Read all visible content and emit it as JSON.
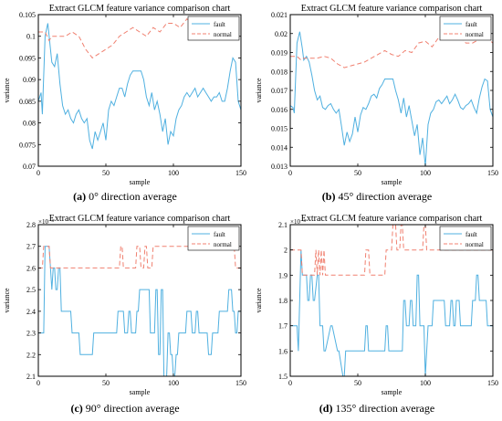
{
  "chart_data": [
    {
      "id": "a",
      "type": "line",
      "title": "Extract GLCM feature variance comparison chart",
      "xlabel": "sample",
      "ylabel": "variance",
      "xlim": [
        0,
        150
      ],
      "ylim": [
        0.07,
        0.105
      ],
      "xticks": [
        0,
        50,
        100,
        150
      ],
      "yticks": [
        0.07,
        0.075,
        0.08,
        0.085,
        0.09,
        0.095,
        0.1,
        0.105
      ],
      "ytick_labels": [
        "0.07",
        "0.075",
        "0.08",
        "0.085",
        "0.09",
        "0.095",
        "0.1",
        "0.105"
      ],
      "exponent_label": "",
      "legend_position": "top-right",
      "series": [
        {
          "name": "fault",
          "color": "#4fb0e0",
          "style": "solid",
          "x": [
            0,
            2,
            3,
            5,
            7,
            9,
            10,
            12,
            14,
            16,
            18,
            20,
            22,
            24,
            26,
            28,
            30,
            32,
            34,
            36,
            38,
            40,
            42,
            44,
            46,
            48,
            50,
            52,
            54,
            56,
            58,
            60,
            62,
            64,
            66,
            68,
            70,
            72,
            74,
            76,
            78,
            80,
            82,
            84,
            86,
            88,
            90,
            92,
            94,
            96,
            98,
            100,
            102,
            104,
            106,
            108,
            110,
            112,
            114,
            116,
            118,
            120,
            122,
            124,
            126,
            128,
            130,
            132,
            134,
            136,
            138,
            140,
            142,
            144,
            146,
            148,
            150
          ],
          "y": [
            0.085,
            0.087,
            0.082,
            0.1,
            0.103,
            0.097,
            0.094,
            0.093,
            0.096,
            0.089,
            0.084,
            0.082,
            0.083,
            0.081,
            0.08,
            0.082,
            0.083,
            0.081,
            0.08,
            0.081,
            0.076,
            0.074,
            0.078,
            0.076,
            0.078,
            0.08,
            0.076,
            0.083,
            0.085,
            0.084,
            0.086,
            0.088,
            0.088,
            0.086,
            0.089,
            0.091,
            0.092,
            0.092,
            0.092,
            0.092,
            0.09,
            0.086,
            0.084,
            0.087,
            0.083,
            0.085,
            0.082,
            0.078,
            0.081,
            0.075,
            0.078,
            0.077,
            0.081,
            0.083,
            0.084,
            0.086,
            0.087,
            0.086,
            0.087,
            0.088,
            0.086,
            0.087,
            0.088,
            0.087,
            0.086,
            0.085,
            0.086,
            0.086,
            0.087,
            0.085,
            0.085,
            0.088,
            0.092,
            0.095,
            0.094,
            0.085,
            0.083
          ]
        },
        {
          "name": "normal",
          "color": "#f08070",
          "style": "dashed",
          "x": [
            0,
            5,
            8,
            10,
            15,
            20,
            25,
            30,
            35,
            40,
            45,
            50,
            55,
            60,
            65,
            70,
            75,
            80,
            85,
            90,
            95,
            100,
            105,
            110,
            115,
            120,
            125,
            130,
            135,
            140,
            145,
            150
          ],
          "y": [
            0.101,
            0.101,
            0.099,
            0.1,
            0.1,
            0.1,
            0.101,
            0.1,
            0.097,
            0.095,
            0.096,
            0.097,
            0.098,
            0.1,
            0.101,
            0.102,
            0.101,
            0.1,
            0.102,
            0.101,
            0.103,
            0.103,
            0.102,
            0.104,
            0.103,
            0.103,
            0.104,
            0.102,
            0.102,
            0.103,
            0.103,
            0.102
          ]
        }
      ]
    },
    {
      "id": "b",
      "type": "line",
      "title": "Extract GLCM feature variance comparison chart",
      "xlabel": "sample",
      "ylabel": "variance",
      "xlim": [
        0,
        150
      ],
      "ylim": [
        0.013,
        0.021
      ],
      "xticks": [
        0,
        50,
        100,
        150
      ],
      "yticks": [
        0.013,
        0.014,
        0.015,
        0.016,
        0.017,
        0.018,
        0.019,
        0.02,
        0.021
      ],
      "ytick_labels": [
        "0.013",
        "0.014",
        "0.015",
        "0.016",
        "0.017",
        "0.018",
        "0.019",
        "0.02",
        "0.021"
      ],
      "exponent_label": "",
      "legend_position": "top-right",
      "series": [
        {
          "name": "fault",
          "color": "#4fb0e0",
          "style": "solid",
          "x": [
            0,
            2,
            3,
            5,
            7,
            9,
            10,
            12,
            14,
            16,
            18,
            20,
            22,
            24,
            26,
            28,
            30,
            32,
            34,
            36,
            38,
            40,
            42,
            44,
            46,
            48,
            50,
            52,
            54,
            56,
            58,
            60,
            62,
            64,
            66,
            68,
            70,
            72,
            74,
            76,
            78,
            80,
            82,
            84,
            86,
            88,
            90,
            92,
            94,
            96,
            98,
            100,
            102,
            104,
            106,
            108,
            110,
            112,
            114,
            116,
            118,
            120,
            122,
            124,
            126,
            128,
            130,
            132,
            134,
            136,
            138,
            140,
            142,
            144,
            146,
            148,
            150
          ],
          "y": [
            0.0162,
            0.0161,
            0.0158,
            0.0195,
            0.0201,
            0.0192,
            0.0186,
            0.0188,
            0.0185,
            0.0178,
            0.017,
            0.0165,
            0.0167,
            0.0161,
            0.016,
            0.0162,
            0.0163,
            0.016,
            0.0158,
            0.016,
            0.0151,
            0.0141,
            0.0148,
            0.0143,
            0.0147,
            0.0156,
            0.0148,
            0.0157,
            0.0161,
            0.016,
            0.0163,
            0.0167,
            0.0168,
            0.0166,
            0.0171,
            0.0173,
            0.0176,
            0.0176,
            0.0176,
            0.0176,
            0.017,
            0.0165,
            0.0158,
            0.0166,
            0.0156,
            0.0162,
            0.0154,
            0.0146,
            0.0152,
            0.0136,
            0.0145,
            0.013,
            0.0152,
            0.0158,
            0.016,
            0.0164,
            0.0165,
            0.0163,
            0.0165,
            0.0167,
            0.0163,
            0.0165,
            0.0168,
            0.0165,
            0.0161,
            0.016,
            0.0162,
            0.0163,
            0.0165,
            0.0161,
            0.0158,
            0.0166,
            0.0172,
            0.0176,
            0.0175,
            0.016,
            0.0156
          ]
        },
        {
          "name": "normal",
          "color": "#f08070",
          "style": "dashed",
          "x": [
            0,
            5,
            8,
            10,
            15,
            20,
            25,
            30,
            35,
            40,
            45,
            50,
            55,
            60,
            65,
            70,
            75,
            80,
            85,
            90,
            95,
            100,
            105,
            110,
            115,
            120,
            125,
            130,
            135,
            140,
            145,
            150
          ],
          "y": [
            0.0188,
            0.0188,
            0.0186,
            0.0187,
            0.0187,
            0.0187,
            0.0188,
            0.0187,
            0.0184,
            0.0182,
            0.0183,
            0.0184,
            0.0185,
            0.0187,
            0.0189,
            0.0191,
            0.0189,
            0.0188,
            0.0191,
            0.019,
            0.0195,
            0.0196,
            0.0193,
            0.0198,
            0.0197,
            0.0197,
            0.0199,
            0.0195,
            0.0195,
            0.0197,
            0.0198,
            0.0195
          ]
        }
      ]
    },
    {
      "id": "c",
      "type": "line",
      "title": "Extract GLCM feature variance comparison chart",
      "xlabel": "sample",
      "ylabel": "variance",
      "xlim": [
        0,
        150
      ],
      "ylim": [
        0.0021,
        0.0028
      ],
      "xticks": [
        0,
        50,
        100,
        150
      ],
      "yticks": [
        0.0021,
        0.0022,
        0.0023,
        0.0024,
        0.0025,
        0.0026,
        0.0027,
        0.0028
      ],
      "ytick_labels": [
        "2.1",
        "2.2",
        "2.3",
        "2.4",
        "2.5",
        "2.6",
        "2.7",
        "2.8"
      ],
      "exponent_label": "×10⁻³",
      "legend_position": "top-right",
      "series": [
        {
          "name": "fault",
          "color": "#4fb0e0",
          "style": "solid",
          "x": [
            0,
            4,
            5,
            6,
            8,
            9,
            10,
            11,
            12,
            13,
            14,
            15,
            16,
            17,
            18,
            24,
            25,
            30,
            31,
            40,
            41,
            58,
            59,
            63,
            64,
            66,
            67,
            68,
            69,
            72,
            73,
            74,
            75,
            82,
            83,
            86,
            87,
            88,
            89,
            90,
            91,
            92,
            93,
            95,
            96,
            97,
            98,
            99,
            100,
            101,
            102,
            103,
            104,
            109,
            110,
            113,
            114,
            116,
            117,
            118,
            119,
            125,
            126,
            128,
            129,
            133,
            134,
            140,
            141,
            143,
            144,
            145,
            146,
            147,
            148,
            150
          ],
          "y": [
            0.0023,
            0.0023,
            0.0027,
            0.0027,
            0.0027,
            0.0026,
            0.0025,
            0.0026,
            0.0026,
            0.0025,
            0.0025,
            0.0026,
            0.0026,
            0.0024,
            0.0024,
            0.0024,
            0.0023,
            0.0023,
            0.0022,
            0.0022,
            0.0023,
            0.0023,
            0.0024,
            0.0024,
            0.0023,
            0.0023,
            0.0024,
            0.0024,
            0.0023,
            0.0023,
            0.0024,
            0.0024,
            0.0025,
            0.0025,
            0.0023,
            0.0023,
            0.0025,
            0.0025,
            0.0022,
            0.0022,
            0.0025,
            0.0025,
            0.0021,
            0.0021,
            0.0023,
            0.0023,
            0.0022,
            0.0022,
            0.0021,
            0.0021,
            0.0022,
            0.0022,
            0.0023,
            0.0023,
            0.0024,
            0.0024,
            0.0023,
            0.0023,
            0.0024,
            0.0024,
            0.0023,
            0.0023,
            0.0022,
            0.0022,
            0.0023,
            0.0023,
            0.0024,
            0.0024,
            0.0025,
            0.0025,
            0.0024,
            0.0024,
            0.0023,
            0.0023,
            0.0024,
            0.0024
          ]
        },
        {
          "name": "normal",
          "color": "#f08070",
          "style": "dashed",
          "x": [
            0,
            3,
            4,
            8,
            9,
            60,
            61,
            62,
            63,
            72,
            73,
            75,
            76,
            78,
            79,
            80,
            81,
            84,
            85,
            100,
            101,
            145,
            146,
            150
          ],
          "y": [
            0.0026,
            0.0026,
            0.0027,
            0.0027,
            0.0026,
            0.0026,
            0.0027,
            0.0027,
            0.0026,
            0.0026,
            0.0027,
            0.0027,
            0.0026,
            0.0026,
            0.0027,
            0.0027,
            0.0026,
            0.0026,
            0.0027,
            0.0027,
            0.0027,
            0.0027,
            0.0026,
            0.0026
          ]
        }
      ]
    },
    {
      "id": "d",
      "type": "line",
      "title": "Extract GLCM feature variance comparison chart",
      "xlabel": "sample",
      "ylabel": "variance",
      "xlim": [
        0,
        150
      ],
      "ylim": [
        0.0015,
        0.0021
      ],
      "xticks": [
        0,
        50,
        100,
        150
      ],
      "yticks": [
        0.0015,
        0.0016,
        0.0017,
        0.0018,
        0.0019,
        0.002,
        0.0021
      ],
      "ytick_labels": [
        "1.5",
        "1.6",
        "1.7",
        "1.8",
        "1.9",
        "2",
        "2.1"
      ],
      "exponent_label": "×10⁻³",
      "legend_position": "top-right",
      "series": [
        {
          "name": "fault",
          "color": "#4fb0e0",
          "style": "solid",
          "x": [
            0,
            5,
            6,
            8,
            9,
            12,
            13,
            14,
            15,
            16,
            17,
            18,
            20,
            21,
            22,
            24,
            25,
            26,
            30,
            31,
            35,
            36,
            39,
            40,
            41,
            55,
            56,
            57,
            58,
            70,
            71,
            72,
            73,
            83,
            84,
            85,
            86,
            88,
            89,
            90,
            91,
            93,
            94,
            95,
            96,
            99,
            100,
            101,
            102,
            105,
            106,
            114,
            115,
            118,
            119,
            120,
            121,
            122,
            123,
            125,
            126,
            134,
            135,
            137,
            138,
            139,
            140,
            145,
            146,
            148,
            149,
            150
          ],
          "y": [
            0.0017,
            0.0017,
            0.0016,
            0.002,
            0.0019,
            0.0019,
            0.0018,
            0.0018,
            0.0019,
            0.0019,
            0.0018,
            0.0018,
            0.0019,
            0.0019,
            0.0017,
            0.0017,
            0.0016,
            0.0016,
            0.0017,
            0.0017,
            0.0016,
            0.0016,
            0.0015,
            0.0015,
            0.0016,
            0.0016,
            0.0017,
            0.0017,
            0.0016,
            0.0016,
            0.0017,
            0.0017,
            0.0016,
            0.0016,
            0.0018,
            0.0018,
            0.0017,
            0.0017,
            0.0018,
            0.0018,
            0.0017,
            0.0017,
            0.0019,
            0.0019,
            0.0017,
            0.0017,
            0.0015,
            0.0016,
            0.0017,
            0.0017,
            0.0018,
            0.0018,
            0.0017,
            0.0017,
            0.0018,
            0.0018,
            0.0017,
            0.0017,
            0.0018,
            0.0018,
            0.0017,
            0.0017,
            0.0018,
            0.0018,
            0.0019,
            0.0019,
            0.0018,
            0.0018,
            0.0017,
            0.0017,
            0.0017,
            0.0017
          ]
        },
        {
          "name": "normal",
          "color": "#f08070",
          "style": "dashed",
          "x": [
            0,
            8,
            9,
            18,
            19,
            20,
            21,
            22,
            23,
            24,
            25,
            26,
            27,
            55,
            56,
            58,
            59,
            70,
            71,
            75,
            76,
            78,
            79,
            81,
            82,
            83,
            84,
            98,
            99,
            100,
            101,
            103,
            104,
            150
          ],
          "y": [
            0.002,
            0.002,
            0.0019,
            0.0019,
            0.002,
            0.0019,
            0.002,
            0.0019,
            0.002,
            0.0019,
            0.002,
            0.0019,
            0.0019,
            0.0019,
            0.002,
            0.002,
            0.0019,
            0.0019,
            0.002,
            0.002,
            0.0021,
            0.0021,
            0.002,
            0.002,
            0.0021,
            0.0021,
            0.002,
            0.002,
            0.0021,
            0.0021,
            0.002,
            0.002,
            0.002,
            0.002
          ]
        }
      ]
    }
  ],
  "captions": [
    {
      "letter": "(a)",
      "text": " 0° direction average"
    },
    {
      "letter": "(b)",
      "text": " 45° direction average"
    },
    {
      "letter": "(c)",
      "text": " 90° direction average"
    },
    {
      "letter": "(d)",
      "text": " 135° direction average"
    }
  ]
}
